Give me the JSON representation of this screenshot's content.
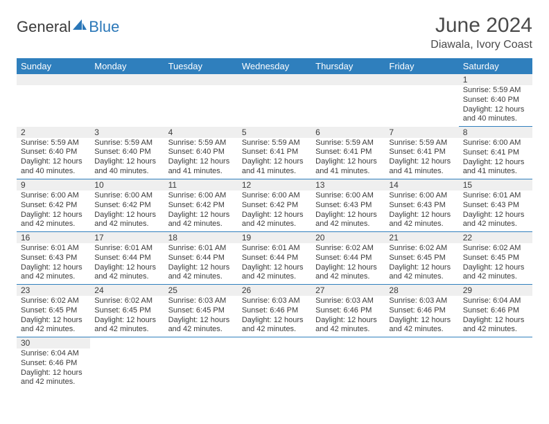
{
  "brand": {
    "name1": "General",
    "name2": "Blue"
  },
  "title": "June 2024",
  "location": "Diawala, Ivory Coast",
  "colors": {
    "header_bg": "#2f7fbd",
    "header_fg": "#ffffff",
    "daybar_bg": "#efefef",
    "text": "#3a3a3a",
    "cell_border": "#2f7fbd"
  },
  "dayHeaders": [
    "Sunday",
    "Monday",
    "Tuesday",
    "Wednesday",
    "Thursday",
    "Friday",
    "Saturday"
  ],
  "weeks": [
    [
      null,
      null,
      null,
      null,
      null,
      null,
      {
        "n": "1",
        "sr": "5:59 AM",
        "ss": "6:40 PM",
        "dl": "12 hours and 40 minutes."
      }
    ],
    [
      {
        "n": "2",
        "sr": "5:59 AM",
        "ss": "6:40 PM",
        "dl": "12 hours and 40 minutes."
      },
      {
        "n": "3",
        "sr": "5:59 AM",
        "ss": "6:40 PM",
        "dl": "12 hours and 40 minutes."
      },
      {
        "n": "4",
        "sr": "5:59 AM",
        "ss": "6:40 PM",
        "dl": "12 hours and 41 minutes."
      },
      {
        "n": "5",
        "sr": "5:59 AM",
        "ss": "6:41 PM",
        "dl": "12 hours and 41 minutes."
      },
      {
        "n": "6",
        "sr": "5:59 AM",
        "ss": "6:41 PM",
        "dl": "12 hours and 41 minutes."
      },
      {
        "n": "7",
        "sr": "5:59 AM",
        "ss": "6:41 PM",
        "dl": "12 hours and 41 minutes."
      },
      {
        "n": "8",
        "sr": "6:00 AM",
        "ss": "6:41 PM",
        "dl": "12 hours and 41 minutes."
      }
    ],
    [
      {
        "n": "9",
        "sr": "6:00 AM",
        "ss": "6:42 PM",
        "dl": "12 hours and 42 minutes."
      },
      {
        "n": "10",
        "sr": "6:00 AM",
        "ss": "6:42 PM",
        "dl": "12 hours and 42 minutes."
      },
      {
        "n": "11",
        "sr": "6:00 AM",
        "ss": "6:42 PM",
        "dl": "12 hours and 42 minutes."
      },
      {
        "n": "12",
        "sr": "6:00 AM",
        "ss": "6:42 PM",
        "dl": "12 hours and 42 minutes."
      },
      {
        "n": "13",
        "sr": "6:00 AM",
        "ss": "6:43 PM",
        "dl": "12 hours and 42 minutes."
      },
      {
        "n": "14",
        "sr": "6:00 AM",
        "ss": "6:43 PM",
        "dl": "12 hours and 42 minutes."
      },
      {
        "n": "15",
        "sr": "6:01 AM",
        "ss": "6:43 PM",
        "dl": "12 hours and 42 minutes."
      }
    ],
    [
      {
        "n": "16",
        "sr": "6:01 AM",
        "ss": "6:43 PM",
        "dl": "12 hours and 42 minutes."
      },
      {
        "n": "17",
        "sr": "6:01 AM",
        "ss": "6:44 PM",
        "dl": "12 hours and 42 minutes."
      },
      {
        "n": "18",
        "sr": "6:01 AM",
        "ss": "6:44 PM",
        "dl": "12 hours and 42 minutes."
      },
      {
        "n": "19",
        "sr": "6:01 AM",
        "ss": "6:44 PM",
        "dl": "12 hours and 42 minutes."
      },
      {
        "n": "20",
        "sr": "6:02 AM",
        "ss": "6:44 PM",
        "dl": "12 hours and 42 minutes."
      },
      {
        "n": "21",
        "sr": "6:02 AM",
        "ss": "6:45 PM",
        "dl": "12 hours and 42 minutes."
      },
      {
        "n": "22",
        "sr": "6:02 AM",
        "ss": "6:45 PM",
        "dl": "12 hours and 42 minutes."
      }
    ],
    [
      {
        "n": "23",
        "sr": "6:02 AM",
        "ss": "6:45 PM",
        "dl": "12 hours and 42 minutes."
      },
      {
        "n": "24",
        "sr": "6:02 AM",
        "ss": "6:45 PM",
        "dl": "12 hours and 42 minutes."
      },
      {
        "n": "25",
        "sr": "6:03 AM",
        "ss": "6:45 PM",
        "dl": "12 hours and 42 minutes."
      },
      {
        "n": "26",
        "sr": "6:03 AM",
        "ss": "6:46 PM",
        "dl": "12 hours and 42 minutes."
      },
      {
        "n": "27",
        "sr": "6:03 AM",
        "ss": "6:46 PM",
        "dl": "12 hours and 42 minutes."
      },
      {
        "n": "28",
        "sr": "6:03 AM",
        "ss": "6:46 PM",
        "dl": "12 hours and 42 minutes."
      },
      {
        "n": "29",
        "sr": "6:04 AM",
        "ss": "6:46 PM",
        "dl": "12 hours and 42 minutes."
      }
    ],
    [
      {
        "n": "30",
        "sr": "6:04 AM",
        "ss": "6:46 PM",
        "dl": "12 hours and 42 minutes."
      },
      null,
      null,
      null,
      null,
      null,
      null
    ]
  ],
  "labels": {
    "sunrise": "Sunrise:",
    "sunset": "Sunset:",
    "daylight": "Daylight:"
  }
}
